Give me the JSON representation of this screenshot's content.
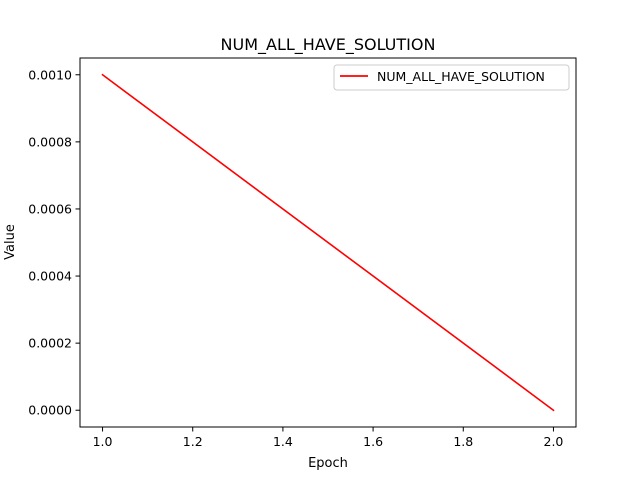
{
  "chart_data": {
    "type": "line",
    "title": "NUM_ALL_HAVE_SOLUTION",
    "xlabel": "Epoch",
    "ylabel": "Value",
    "xlim": [
      0.95,
      2.05
    ],
    "ylim": [
      -5e-05,
      0.00105
    ],
    "x_ticks": [
      1.0,
      1.2,
      1.4,
      1.6,
      1.8,
      2.0
    ],
    "x_tick_labels": [
      "1.0",
      "1.2",
      "1.4",
      "1.6",
      "1.8",
      "2.0"
    ],
    "y_ticks": [
      0.0,
      0.0002,
      0.0004,
      0.0006,
      0.0008,
      0.001
    ],
    "y_tick_labels": [
      "0.0000",
      "0.0002",
      "0.0004",
      "0.0006",
      "0.0008",
      "0.0010"
    ],
    "grid": false,
    "legend_position": "top-right",
    "series": [
      {
        "name": "NUM_ALL_HAVE_SOLUTION",
        "color": "#ff0000",
        "x": [
          1.0,
          2.0
        ],
        "y": [
          0.001,
          0.0
        ]
      }
    ]
  }
}
